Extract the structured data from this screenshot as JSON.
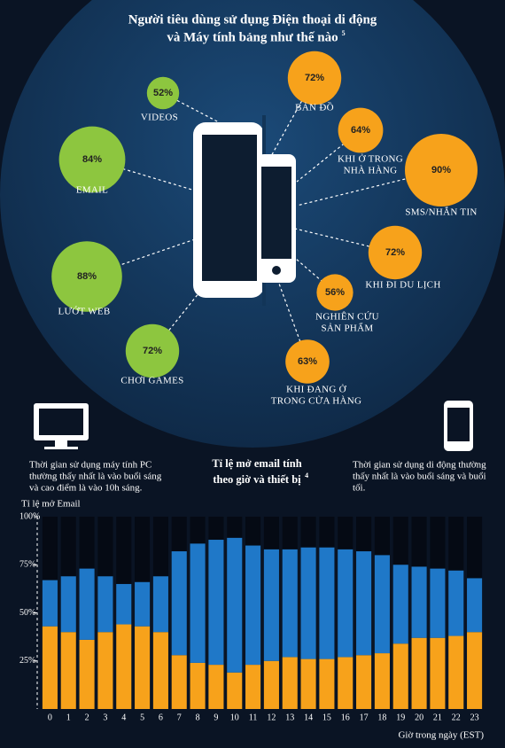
{
  "chart_data": [
    {
      "type": "bubble",
      "title": [
        "Người tiêu dùng sử dụng Điện thoại di động",
        "và Máy tính bảng như thế nào"
      ],
      "note": "5",
      "items": [
        {
          "label": [
            "VIDEOS"
          ],
          "value": 52,
          "value_label": "52%",
          "color": "#8dc63f"
        },
        {
          "label": [
            "EMAIL"
          ],
          "value": 84,
          "value_label": "84%",
          "color": "#8dc63f"
        },
        {
          "label": [
            "LƯỚT WEB"
          ],
          "value": 88,
          "value_label": "88%",
          "color": "#8dc63f"
        },
        {
          "label": [
            "CHƠI GAMES"
          ],
          "value": 72,
          "value_label": "72%",
          "color": "#8dc63f"
        },
        {
          "label": [
            "BẢN ĐỒ"
          ],
          "value": 72,
          "value_label": "72%",
          "color": "#f7a21b"
        },
        {
          "label": [
            "KHI Ở TRONG",
            "NHÀ HÀNG"
          ],
          "value": 64,
          "value_label": "64%",
          "color": "#f7a21b"
        },
        {
          "label": [
            "SMS/NHẮN TIN"
          ],
          "value": 90,
          "value_label": "90%",
          "color": "#f7a21b"
        },
        {
          "label": [
            "KHI ĐI DU LỊCH"
          ],
          "value": 72,
          "value_label": "72%",
          "color": "#f7a21b"
        },
        {
          "label": [
            "NGHIÊN CỨU",
            "SẢN PHẨM"
          ],
          "value": 56,
          "value_label": "56%",
          "color": "#f7a21b"
        },
        {
          "label": [
            "KHI ĐANG Ở",
            "TRONG CỬA HÀNG"
          ],
          "value": 63,
          "value_label": "63%",
          "color": "#f7a21b"
        }
      ]
    },
    {
      "type": "bar",
      "stacked": true,
      "title": [
        "Tỉ lệ mở email tính",
        "theo giờ và thiết bị"
      ],
      "note": "4",
      "annotations": [
        [
          "Thời gian sử dụng máy tính PC",
          "thường thấy nhất là vào buổi sáng",
          "và cao điểm là vào 10h sáng."
        ],
        [
          "Thời gian sử dụng di động thường",
          "thấy nhất là vào buổi sáng và buổi",
          "tối."
        ]
      ],
      "y_label": "Tỉ lệ mở Email",
      "x_label": "Giờ trong ngày (EST)",
      "categories": [
        "0",
        "1",
        "2",
        "3",
        "4",
        "5",
        "6",
        "7",
        "8",
        "9",
        "10",
        "11",
        "12",
        "13",
        "14",
        "15",
        "16",
        "17",
        "18",
        "19",
        "20",
        "21",
        "22",
        "23"
      ],
      "series": [
        {
          "color": "#f7a21b",
          "values": [
            43,
            40,
            36,
            40,
            44,
            43,
            40,
            28,
            24,
            23,
            19,
            23,
            25,
            27,
            26,
            26,
            27,
            28,
            29,
            34,
            37,
            37,
            38,
            40
          ]
        },
        {
          "color": "#1f78c8",
          "values": [
            24,
            29,
            37,
            29,
            21,
            23,
            29,
            54,
            62,
            65,
            70,
            62,
            58,
            56,
            58,
            58,
            56,
            54,
            51,
            41,
            37,
            36,
            34,
            28
          ]
        }
      ],
      "ylim": [
        0,
        100
      ],
      "yticks": [
        {
          "value": 25,
          "label": "25%"
        },
        {
          "value": 50,
          "label": "50%"
        },
        {
          "value": 75,
          "label": "75%"
        },
        {
          "value": 100,
          "label": "100%"
        }
      ],
      "background_color": "#050a14"
    }
  ]
}
